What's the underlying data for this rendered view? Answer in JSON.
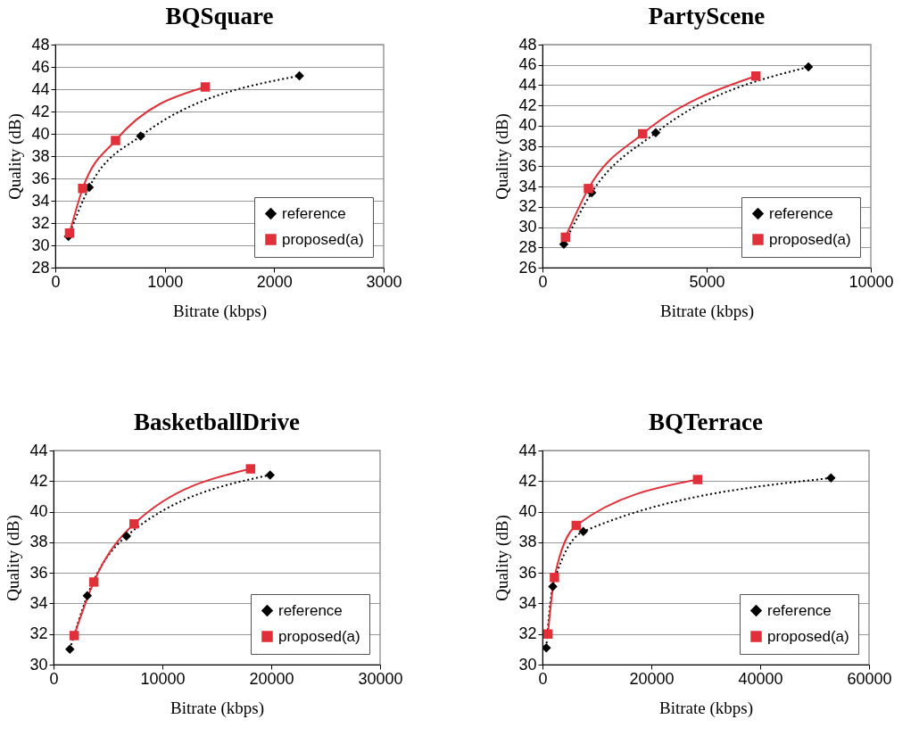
{
  "chart_data": [
    {
      "type": "line",
      "title": "BQSquare",
      "xlabel": "Bitrate (kbps)",
      "ylabel": "Quality (dB)",
      "xlim": [
        0,
        3000
      ],
      "xticks": [
        0,
        1000,
        2000,
        3000
      ],
      "ylim": [
        28,
        48
      ],
      "yticks": [
        28,
        30,
        32,
        34,
        36,
        38,
        40,
        42,
        44,
        46,
        48
      ],
      "grid": "y",
      "legend": "bottom right",
      "series": [
        {
          "name": "reference",
          "color": "#000000",
          "marker": "diamond",
          "line_style": "dotted",
          "x": [
            120,
            310,
            780,
            2230
          ],
          "values": [
            30.8,
            35.2,
            39.8,
            45.2
          ]
        },
        {
          "name": "proposed(a)",
          "color": "#e0303a",
          "marker": "square",
          "line_style": "solid",
          "x": [
            130,
            250,
            550,
            1370
          ],
          "values": [
            31.1,
            35.1,
            39.4,
            44.2
          ]
        }
      ]
    },
    {
      "type": "line",
      "title": "PartyScene",
      "xlabel": "Bitrate (kbps)",
      "ylabel": "Quality (dB)",
      "xlim": [
        0,
        10000
      ],
      "xticks": [
        0,
        5000,
        10000
      ],
      "ylim": [
        26,
        48
      ],
      "yticks": [
        26,
        28,
        30,
        32,
        34,
        36,
        38,
        40,
        42,
        44,
        46,
        48
      ],
      "grid": "y",
      "legend": "bottom right",
      "series": [
        {
          "name": "reference",
          "color": "#000000",
          "marker": "diamond",
          "line_style": "dotted",
          "x": [
            650,
            1500,
            3450,
            8100
          ],
          "values": [
            28.3,
            33.4,
            39.3,
            45.8
          ]
        },
        {
          "name": "proposed(a)",
          "color": "#e0303a",
          "marker": "square",
          "line_style": "solid",
          "x": [
            700,
            1400,
            3050,
            6500
          ],
          "values": [
            29.0,
            33.8,
            39.2,
            44.9
          ]
        }
      ]
    },
    {
      "type": "line",
      "title": "BasketballDrive",
      "xlabel": "Bitrate (kbps)",
      "ylabel": "Quality (dB)",
      "xlim": [
        0,
        30000
      ],
      "xticks": [
        0,
        10000,
        20000,
        30000
      ],
      "ylim": [
        30,
        44
      ],
      "yticks": [
        30,
        32,
        34,
        36,
        38,
        40,
        42,
        44
      ],
      "grid": "y",
      "legend": "bottom right",
      "series": [
        {
          "name": "reference",
          "color": "#000000",
          "marker": "diamond",
          "line_style": "dotted",
          "x": [
            1500,
            3100,
            6700,
            19900
          ],
          "values": [
            31.0,
            34.5,
            38.4,
            42.4
          ]
        },
        {
          "name": "proposed(a)",
          "color": "#e0303a",
          "marker": "square",
          "line_style": "solid",
          "x": [
            1900,
            3700,
            7400,
            18100
          ],
          "values": [
            31.9,
            35.4,
            39.2,
            42.8
          ]
        }
      ]
    },
    {
      "type": "line",
      "title": "BQTerrace",
      "xlabel": "Bitrate (kbps)",
      "ylabel": "Quality (dB)",
      "xlim": [
        0,
        60000
      ],
      "xticks": [
        0,
        20000,
        40000,
        60000
      ],
      "ylim": [
        30,
        44
      ],
      "yticks": [
        30,
        32,
        34,
        36,
        38,
        40,
        42,
        44
      ],
      "grid": "y",
      "legend": "bottom right",
      "series": [
        {
          "name": "reference",
          "color": "#000000",
          "marker": "diamond",
          "line_style": "dotted",
          "x": [
            700,
            1900,
            7500,
            53000
          ],
          "values": [
            31.1,
            35.1,
            38.7,
            42.2
          ]
        },
        {
          "name": "proposed(a)",
          "color": "#e0303a",
          "marker": "square",
          "line_style": "solid",
          "x": [
            1000,
            2200,
            6200,
            28500
          ],
          "values": [
            32.0,
            35.7,
            39.1,
            42.1
          ]
        }
      ]
    }
  ]
}
